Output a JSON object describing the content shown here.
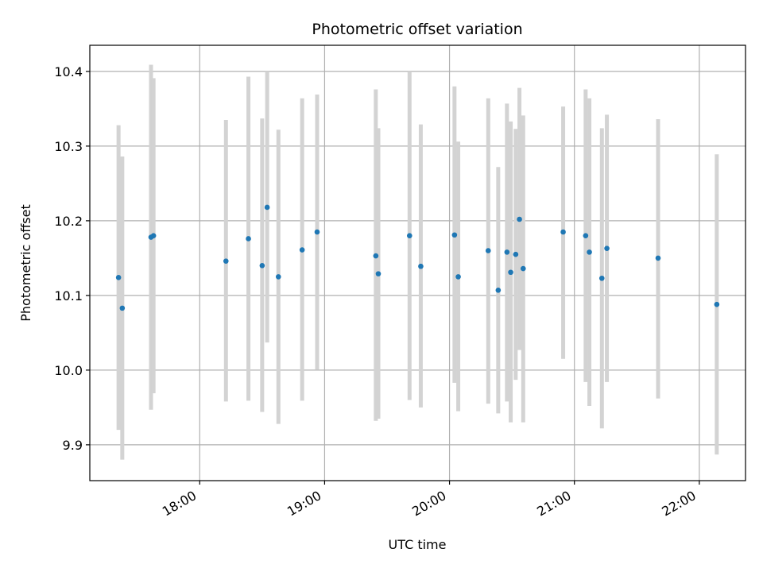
{
  "chart_data": {
    "type": "scatter",
    "title": "Photometric offset variation",
    "xlabel": "UTC time",
    "ylabel": "Photometric offset",
    "xlim": [
      17.12,
      22.37
    ],
    "ylim": [
      9.852,
      10.435
    ],
    "grid": true,
    "x_ticks": [
      {
        "value": 18.0,
        "label": "18:00"
      },
      {
        "value": 19.0,
        "label": "19:00"
      },
      {
        "value": 20.0,
        "label": "20:00"
      },
      {
        "value": 21.0,
        "label": "21:00"
      },
      {
        "value": 22.0,
        "label": "22:00"
      }
    ],
    "y_ticks": [
      {
        "value": 9.9,
        "label": "9.9"
      },
      {
        "value": 10.0,
        "label": "10.0"
      },
      {
        "value": 10.1,
        "label": "10.1"
      },
      {
        "value": 10.2,
        "label": "10.2"
      },
      {
        "value": 10.3,
        "label": "10.3"
      },
      {
        "value": 10.4,
        "label": "10.4"
      }
    ],
    "marker_color": "#1f77b4",
    "errorbar_color": "#d3d3d3",
    "points": [
      {
        "x": 17.35,
        "y": 10.124,
        "low": 9.92,
        "high": 10.328
      },
      {
        "x": 17.38,
        "y": 10.083,
        "low": 9.88,
        "high": 10.286
      },
      {
        "x": 17.61,
        "y": 10.178,
        "low": 9.947,
        "high": 10.409
      },
      {
        "x": 17.63,
        "y": 10.18,
        "low": 9.969,
        "high": 10.391
      },
      {
        "x": 18.21,
        "y": 10.146,
        "low": 9.958,
        "high": 10.335
      },
      {
        "x": 18.39,
        "y": 10.176,
        "low": 9.959,
        "high": 10.393
      },
      {
        "x": 18.5,
        "y": 10.14,
        "low": 9.944,
        "high": 10.337
      },
      {
        "x": 18.54,
        "y": 10.218,
        "low": 10.037,
        "high": 10.4
      },
      {
        "x": 18.63,
        "y": 10.125,
        "low": 9.928,
        "high": 10.322
      },
      {
        "x": 18.82,
        "y": 10.161,
        "low": 9.959,
        "high": 10.364
      },
      {
        "x": 18.94,
        "y": 10.185,
        "low": 10.001,
        "high": 10.369
      },
      {
        "x": 19.41,
        "y": 10.153,
        "low": 9.932,
        "high": 10.376
      },
      {
        "x": 19.43,
        "y": 10.129,
        "low": 9.935,
        "high": 10.324
      },
      {
        "x": 19.68,
        "y": 10.18,
        "low": 9.96,
        "high": 10.4
      },
      {
        "x": 19.77,
        "y": 10.139,
        "low": 9.95,
        "high": 10.329
      },
      {
        "x": 20.04,
        "y": 10.181,
        "low": 9.983,
        "high": 10.38
      },
      {
        "x": 20.07,
        "y": 10.125,
        "low": 9.945,
        "high": 10.306
      },
      {
        "x": 20.31,
        "y": 10.16,
        "low": 9.955,
        "high": 10.364
      },
      {
        "x": 20.39,
        "y": 10.107,
        "low": 9.942,
        "high": 10.272
      },
      {
        "x": 20.46,
        "y": 10.158,
        "low": 9.958,
        "high": 10.357
      },
      {
        "x": 20.49,
        "y": 10.131,
        "low": 9.93,
        "high": 10.333
      },
      {
        "x": 20.53,
        "y": 10.155,
        "low": 9.987,
        "high": 10.323
      },
      {
        "x": 20.56,
        "y": 10.202,
        "low": 10.027,
        "high": 10.378
      },
      {
        "x": 20.59,
        "y": 10.136,
        "low": 9.93,
        "high": 10.341
      },
      {
        "x": 20.91,
        "y": 10.185,
        "low": 10.015,
        "high": 10.353
      },
      {
        "x": 21.09,
        "y": 10.18,
        "low": 9.984,
        "high": 10.376
      },
      {
        "x": 21.12,
        "y": 10.158,
        "low": 9.952,
        "high": 10.364
      },
      {
        "x": 21.22,
        "y": 10.123,
        "low": 9.922,
        "high": 10.324
      },
      {
        "x": 21.26,
        "y": 10.163,
        "low": 9.984,
        "high": 10.342
      },
      {
        "x": 21.67,
        "y": 10.15,
        "low": 9.962,
        "high": 10.336
      },
      {
        "x": 22.14,
        "y": 10.088,
        "low": 9.887,
        "high": 10.289
      }
    ]
  }
}
